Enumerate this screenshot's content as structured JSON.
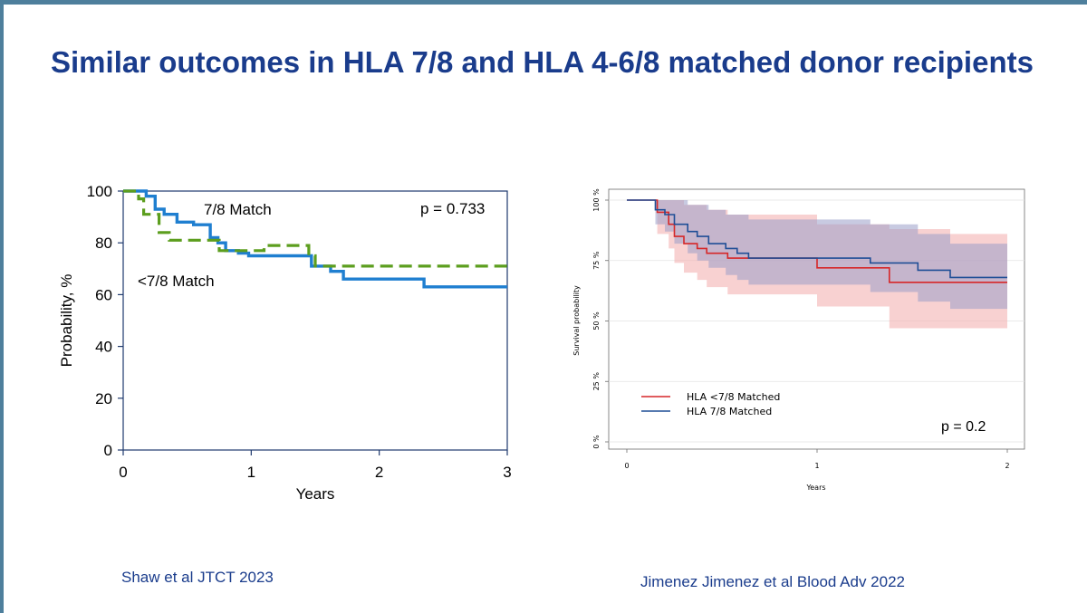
{
  "slide": {
    "title": "Similar outcomes in HLA 7/8 and HLA 4-6/8 matched donor recipients",
    "citation_left": "Shaw et al JTCT 2023",
    "citation_right": "Jimenez Jimenez et al Blood Adv 2022",
    "colors": {
      "title": "#1a3c8c",
      "accent_rule": "#4e7f9c"
    }
  },
  "chart_data": [
    {
      "type": "line",
      "style": "step",
      "xlabel": "Years",
      "ylabel": "Probability, %",
      "xlim": [
        0,
        3
      ],
      "ylim": [
        0,
        100
      ],
      "x_ticks": [
        "0",
        "1",
        "2",
        "3"
      ],
      "y_ticks": [
        "0",
        "20",
        "40",
        "60",
        "80",
        "100"
      ],
      "annotation": "p = 0.733",
      "grid": false,
      "series": [
        {
          "name": "7/8 Match",
          "color": "#1f7fd0",
          "dash": false,
          "points": [
            [
              0,
              100
            ],
            [
              0.18,
              100
            ],
            [
              0.18,
              98
            ],
            [
              0.25,
              98
            ],
            [
              0.25,
              93
            ],
            [
              0.32,
              93
            ],
            [
              0.32,
              91
            ],
            [
              0.42,
              91
            ],
            [
              0.42,
              88
            ],
            [
              0.55,
              88
            ],
            [
              0.55,
              87
            ],
            [
              0.68,
              87
            ],
            [
              0.68,
              82
            ],
            [
              0.74,
              82
            ],
            [
              0.74,
              80
            ],
            [
              0.8,
              80
            ],
            [
              0.8,
              77
            ],
            [
              0.9,
              77
            ],
            [
              0.9,
              76
            ],
            [
              0.98,
              76
            ],
            [
              0.98,
              75
            ],
            [
              1.47,
              75
            ],
            [
              1.47,
              71
            ],
            [
              1.62,
              71
            ],
            [
              1.62,
              69
            ],
            [
              1.72,
              69
            ],
            [
              1.72,
              66
            ],
            [
              2.35,
              66
            ],
            [
              2.35,
              63
            ],
            [
              3.0,
              63
            ]
          ]
        },
        {
          "name": "<7/8 Match",
          "color": "#5c9e1e",
          "dash": true,
          "points": [
            [
              0,
              100
            ],
            [
              0.12,
              100
            ],
            [
              0.12,
              97
            ],
            [
              0.16,
              97
            ],
            [
              0.16,
              91
            ],
            [
              0.28,
              91
            ],
            [
              0.28,
              84
            ],
            [
              0.36,
              84
            ],
            [
              0.36,
              81
            ],
            [
              0.75,
              81
            ],
            [
              0.75,
              77
            ],
            [
              1.1,
              77
            ],
            [
              1.1,
              79
            ],
            [
              1.45,
              79
            ],
            [
              1.45,
              75
            ],
            [
              1.5,
              75
            ],
            [
              1.5,
              71
            ],
            [
              3.0,
              71
            ]
          ]
        }
      ]
    },
    {
      "type": "line",
      "style": "step-with-confidence-bands",
      "xlabel": "Years",
      "ylabel": "Survival probability",
      "xlim": [
        0,
        2
      ],
      "ylim": [
        0,
        1
      ],
      "x_ticks": [
        "0",
        "1",
        "2"
      ],
      "y_ticks": [
        "0 %",
        "25 %",
        "50 %",
        "75 %",
        "100 %"
      ],
      "annotation": "p = 0.2",
      "grid": true,
      "legend_position": "bottom-left",
      "series": [
        {
          "name": "HLA <7/8 Matched",
          "color": "#d62728",
          "band_color": "#f4b3b3",
          "points": [
            [
              0,
              1.0
            ],
            [
              0.16,
              1.0
            ],
            [
              0.16,
              0.95
            ],
            [
              0.22,
              0.95
            ],
            [
              0.22,
              0.9
            ],
            [
              0.25,
              0.9
            ],
            [
              0.25,
              0.85
            ],
            [
              0.3,
              0.85
            ],
            [
              0.3,
              0.82
            ],
            [
              0.37,
              0.82
            ],
            [
              0.37,
              0.8
            ],
            [
              0.42,
              0.8
            ],
            [
              0.42,
              0.78
            ],
            [
              0.53,
              0.78
            ],
            [
              0.53,
              0.76
            ],
            [
              1.0,
              0.76
            ],
            [
              1.0,
              0.72
            ],
            [
              1.38,
              0.72
            ],
            [
              1.38,
              0.66
            ],
            [
              2.0,
              0.66
            ]
          ],
          "band_upper": [
            [
              0,
              1.0
            ],
            [
              0.16,
              1.0
            ],
            [
              0.16,
              1.0
            ],
            [
              0.3,
              1.0
            ],
            [
              0.3,
              0.98
            ],
            [
              0.42,
              0.98
            ],
            [
              0.42,
              0.96
            ],
            [
              0.53,
              0.96
            ],
            [
              0.53,
              0.94
            ],
            [
              1.0,
              0.94
            ],
            [
              1.0,
              0.9
            ],
            [
              1.38,
              0.9
            ],
            [
              1.38,
              0.88
            ],
            [
              1.7,
              0.88
            ],
            [
              1.7,
              0.86
            ],
            [
              2.0,
              0.86
            ]
          ],
          "band_lower": [
            [
              0,
              1.0
            ],
            [
              0.16,
              1.0
            ],
            [
              0.16,
              0.86
            ],
            [
              0.22,
              0.86
            ],
            [
              0.22,
              0.8
            ],
            [
              0.25,
              0.8
            ],
            [
              0.25,
              0.74
            ],
            [
              0.3,
              0.74
            ],
            [
              0.3,
              0.7
            ],
            [
              0.37,
              0.7
            ],
            [
              0.37,
              0.67
            ],
            [
              0.42,
              0.67
            ],
            [
              0.42,
              0.64
            ],
            [
              0.53,
              0.64
            ],
            [
              0.53,
              0.61
            ],
            [
              1.0,
              0.61
            ],
            [
              1.0,
              0.56
            ],
            [
              1.38,
              0.56
            ],
            [
              1.38,
              0.47
            ],
            [
              2.0,
              0.47
            ]
          ]
        },
        {
          "name": "HLA 7/8 Matched",
          "color": "#1f4e96",
          "band_color": "#9a9fc8",
          "points": [
            [
              0,
              1.0
            ],
            [
              0.15,
              1.0
            ],
            [
              0.15,
              0.96
            ],
            [
              0.2,
              0.96
            ],
            [
              0.2,
              0.94
            ],
            [
              0.25,
              0.94
            ],
            [
              0.25,
              0.9
            ],
            [
              0.32,
              0.9
            ],
            [
              0.32,
              0.87
            ],
            [
              0.37,
              0.87
            ],
            [
              0.37,
              0.85
            ],
            [
              0.43,
              0.85
            ],
            [
              0.43,
              0.82
            ],
            [
              0.52,
              0.82
            ],
            [
              0.52,
              0.8
            ],
            [
              0.58,
              0.8
            ],
            [
              0.58,
              0.78
            ],
            [
              0.64,
              0.78
            ],
            [
              0.64,
              0.76
            ],
            [
              1.28,
              0.76
            ],
            [
              1.28,
              0.74
            ],
            [
              1.53,
              0.74
            ],
            [
              1.53,
              0.71
            ],
            [
              1.7,
              0.71
            ],
            [
              1.7,
              0.68
            ],
            [
              2.0,
              0.68
            ]
          ],
          "band_upper": [
            [
              0,
              1.0
            ],
            [
              0.15,
              1.0
            ],
            [
              0.15,
              1.0
            ],
            [
              0.32,
              1.0
            ],
            [
              0.32,
              0.98
            ],
            [
              0.43,
              0.98
            ],
            [
              0.43,
              0.96
            ],
            [
              0.52,
              0.96
            ],
            [
              0.52,
              0.94
            ],
            [
              0.64,
              0.94
            ],
            [
              0.64,
              0.92
            ],
            [
              1.28,
              0.92
            ],
            [
              1.28,
              0.9
            ],
            [
              1.53,
              0.9
            ],
            [
              1.53,
              0.86
            ],
            [
              1.7,
              0.86
            ],
            [
              1.7,
              0.82
            ],
            [
              2.0,
              0.82
            ]
          ],
          "band_lower": [
            [
              0,
              1.0
            ],
            [
              0.15,
              1.0
            ],
            [
              0.15,
              0.9
            ],
            [
              0.2,
              0.9
            ],
            [
              0.2,
              0.87
            ],
            [
              0.25,
              0.87
            ],
            [
              0.25,
              0.82
            ],
            [
              0.32,
              0.82
            ],
            [
              0.32,
              0.78
            ],
            [
              0.37,
              0.78
            ],
            [
              0.37,
              0.75
            ],
            [
              0.43,
              0.75
            ],
            [
              0.43,
              0.72
            ],
            [
              0.52,
              0.72
            ],
            [
              0.52,
              0.69
            ],
            [
              0.58,
              0.69
            ],
            [
              0.58,
              0.67
            ],
            [
              0.64,
              0.67
            ],
            [
              0.64,
              0.65
            ],
            [
              1.28,
              0.65
            ],
            [
              1.28,
              0.62
            ],
            [
              1.53,
              0.62
            ],
            [
              1.53,
              0.58
            ],
            [
              1.7,
              0.58
            ],
            [
              1.7,
              0.55
            ],
            [
              2.0,
              0.55
            ]
          ]
        }
      ]
    }
  ]
}
